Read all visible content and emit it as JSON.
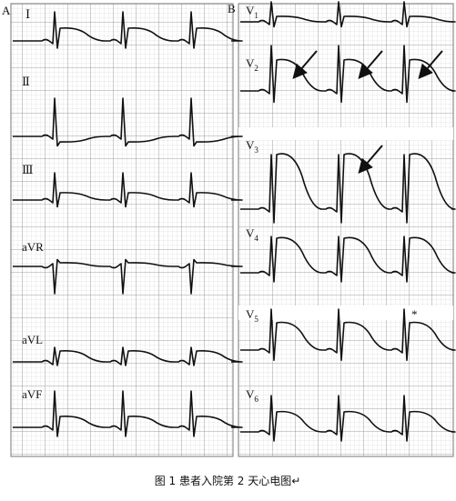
{
  "panel_a": {
    "label": "A",
    "leads": [
      "Ⅰ",
      "Ⅱ",
      "Ⅲ",
      "aVR",
      "aVL",
      "aVF"
    ]
  },
  "panel_b": {
    "label": "B",
    "leads": [
      {
        "name": "V",
        "sub": "1"
      },
      {
        "name": "V",
        "sub": "2"
      },
      {
        "name": "V",
        "sub": "3"
      },
      {
        "name": "V",
        "sub": "4"
      },
      {
        "name": "V",
        "sub": "5"
      },
      {
        "name": "V",
        "sub": "6"
      }
    ],
    "marker": "*"
  },
  "caption": "图 1 患者入院第 2 天心电图↵"
}
